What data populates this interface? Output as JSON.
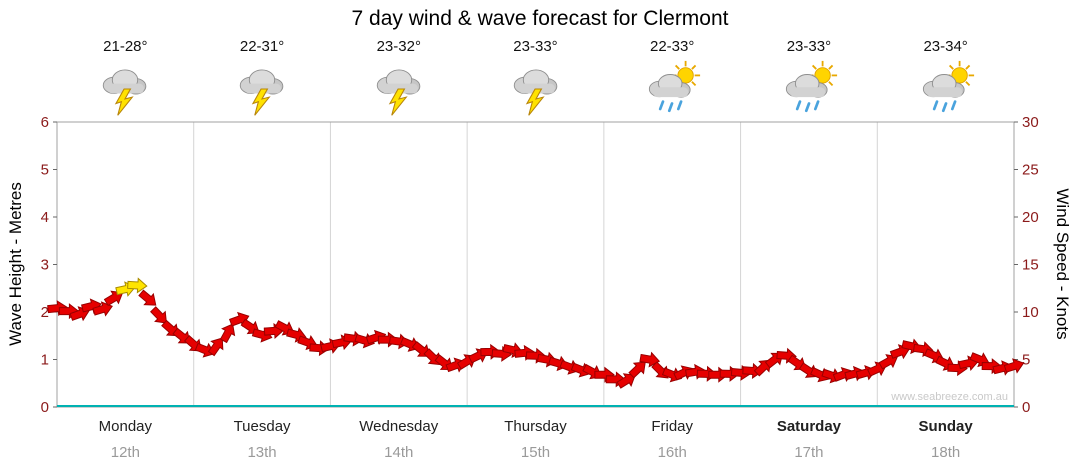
{
  "title": "7 day wind & wave forecast for Clermont",
  "watermark": "www.seabreeze.com.au",
  "days": [
    {
      "name": "Monday",
      "date": "12th",
      "temp": "21-28°",
      "icon": "storm-cloud-lightning-icon",
      "bold": false
    },
    {
      "name": "Tuesday",
      "date": "13th",
      "temp": "22-31°",
      "icon": "storm-cloud-lightning-icon",
      "bold": false
    },
    {
      "name": "Wednesday",
      "date": "14th",
      "temp": "23-32°",
      "icon": "storm-cloud-lightning-icon",
      "bold": false
    },
    {
      "name": "Thursday",
      "date": "15th",
      "temp": "23-33°",
      "icon": "storm-cloud-lightning-icon",
      "bold": false
    },
    {
      "name": "Friday",
      "date": "16th",
      "temp": "22-33°",
      "icon": "sun-cloud-rain-icon",
      "bold": false
    },
    {
      "name": "Saturday",
      "date": "17th",
      "temp": "23-33°",
      "icon": "sun-cloud-rain-icon",
      "bold": true
    },
    {
      "name": "Sunday",
      "date": "18th",
      "temp": "23-34°",
      "icon": "sun-cloud-rain-icon",
      "bold": true
    }
  ],
  "chart_data": {
    "type": "line",
    "title": "7 day wind & wave forecast for Clermont",
    "left_axis": {
      "label": "Wave Height - Metres",
      "min": 0,
      "max": 6,
      "ticks": [
        0,
        1,
        2,
        3,
        4,
        5,
        6
      ]
    },
    "right_axis": {
      "label": "Wind Speed - Knots",
      "min": 0,
      "max": 30,
      "ticks": [
        0,
        5,
        10,
        15,
        20,
        25,
        30
      ]
    },
    "categories": [
      "Monday 12th",
      "Tuesday 13th",
      "Wednesday 14th",
      "Thursday 15th",
      "Friday 16th",
      "Saturday 17th",
      "Sunday 18th"
    ],
    "grid": "vertical-day-separators-only",
    "legend": "none",
    "series": [
      {
        "name": "Wind Speed (knots)",
        "marker": "wind-arrow",
        "step_hours": 2,
        "values": [
          10.4,
          10.1,
          9.8,
          10.6,
          10.3,
          11.5,
          12.4,
          12.8,
          11.4,
          9.6,
          8.2,
          7.4,
          6.6,
          6.0,
          6.4,
          7.8,
          9.2,
          8.4,
          7.6,
          8.0,
          8.3,
          7.6,
          6.8,
          6.2,
          6.4,
          6.8,
          7.2,
          7.0,
          7.3,
          7.1,
          6.9,
          6.6,
          6.0,
          5.2,
          4.6,
          4.4,
          4.8,
          5.4,
          5.8,
          5.6,
          6.0,
          5.7,
          5.4,
          5.0,
          4.6,
          4.2,
          3.9,
          3.7,
          3.4,
          2.9,
          2.8,
          4.0,
          5.0,
          3.8,
          3.4,
          3.6,
          3.7,
          3.5,
          3.4,
          3.5,
          3.6,
          3.8,
          4.2,
          5.0,
          5.4,
          4.6,
          3.8,
          3.4,
          3.3,
          3.4,
          3.5,
          3.6,
          4.0,
          4.8,
          5.8,
          6.4,
          6.1,
          5.4,
          4.6,
          4.1,
          4.6,
          5.0,
          4.3,
          4.1,
          4.3
        ]
      },
      {
        "name": "Wave Height (m)",
        "marker": "line",
        "constant_value": 0
      }
    ],
    "colors": {
      "wind_light": "#e60000",
      "wind_light_stroke": "#990000",
      "wind_moderate": "#ffe400",
      "wind_moderate_stroke": "#a88a00",
      "wave": "#00b2b2",
      "axis_number": "#8b1a1a",
      "frame": "#a0a0a0",
      "separator": "#d4d4d4"
    },
    "moderate_threshold_knots": 12
  }
}
